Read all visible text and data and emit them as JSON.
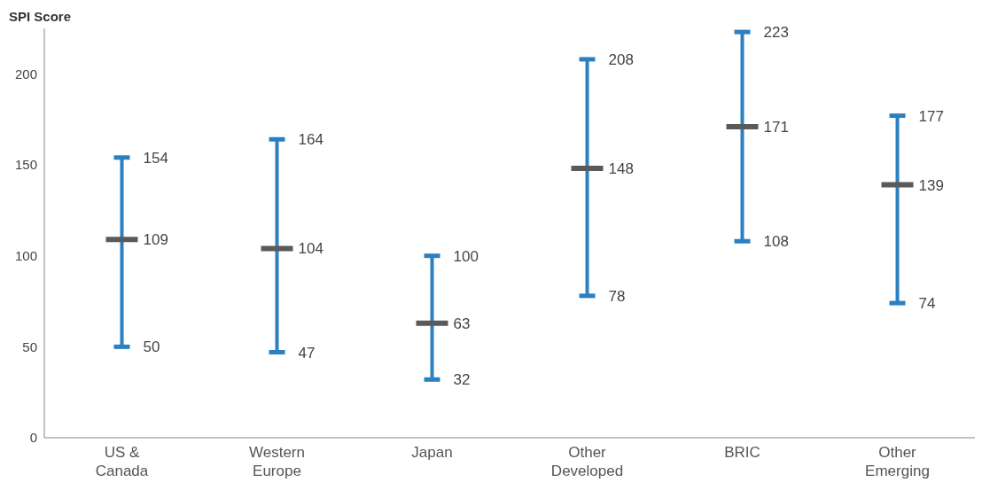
{
  "chart_data": {
    "type": "box",
    "ylabel": "SPI Score",
    "categories": [
      "US & Canada",
      "Western Europe",
      "Japan",
      "Other Developed",
      "BRIC",
      "Other Emerging"
    ],
    "series": [
      {
        "color": "#5a5a5a",
        "boxes": [
          {
            "low": 50,
            "q1": 109,
            "median": 109,
            "q3": 109,
            "high": 154
          },
          {
            "low": 47,
            "q1": 104,
            "median": 104,
            "q3": 104,
            "high": 164
          },
          {
            "low": 32,
            "q1": 63,
            "median": 63,
            "q3": 63,
            "high": 100
          },
          {
            "low": 78,
            "q1": 148,
            "median": 148,
            "q3": 148,
            "high": 208
          },
          {
            "low": 108,
            "q1": 171,
            "median": 171,
            "q3": 171,
            "high": 223
          },
          {
            "low": 74,
            "q1": 139,
            "median": 139,
            "q3": 139,
            "high": 177
          }
        ]
      }
    ],
    "ylim": [
      0,
      225
    ],
    "yticks": [
      0,
      50,
      100,
      150,
      200
    ],
    "grid": false,
    "legend": false,
    "annotations": [
      {
        "text": "154",
        "x": "US & Canada",
        "y": 154
      },
      {
        "text": "109",
        "x": "US & Canada",
        "y": 109
      },
      {
        "text": "50",
        "x": "US & Canada",
        "y": 50
      },
      {
        "text": "164",
        "x": "Western Europe",
        "y": 164
      },
      {
        "text": "104",
        "x": "Western Europe",
        "y": 104
      },
      {
        "text": "47",
        "x": "Western Europe",
        "y": 47
      },
      {
        "text": "100",
        "x": "Japan",
        "y": 100
      },
      {
        "text": "63",
        "x": "Japan",
        "y": 63
      },
      {
        "text": "32",
        "x": "Japan",
        "y": 32
      },
      {
        "text": "208",
        "x": "Other Developed",
        "y": 208
      },
      {
        "text": "148",
        "x": "Other Developed",
        "y": 148
      },
      {
        "text": "78",
        "x": "Other Developed",
        "y": 78
      },
      {
        "text": "223",
        "x": "BRIC",
        "y": 223
      },
      {
        "text": "171",
        "x": "BRIC",
        "y": 171
      },
      {
        "text": "108",
        "x": "BRIC",
        "y": 108
      },
      {
        "text": "177",
        "x": "Other Emerging",
        "y": 177
      },
      {
        "text": "139",
        "x": "Other Emerging",
        "y": 139
      },
      {
        "text": "74",
        "x": "Other Emerging",
        "y": 74
      }
    ]
  }
}
